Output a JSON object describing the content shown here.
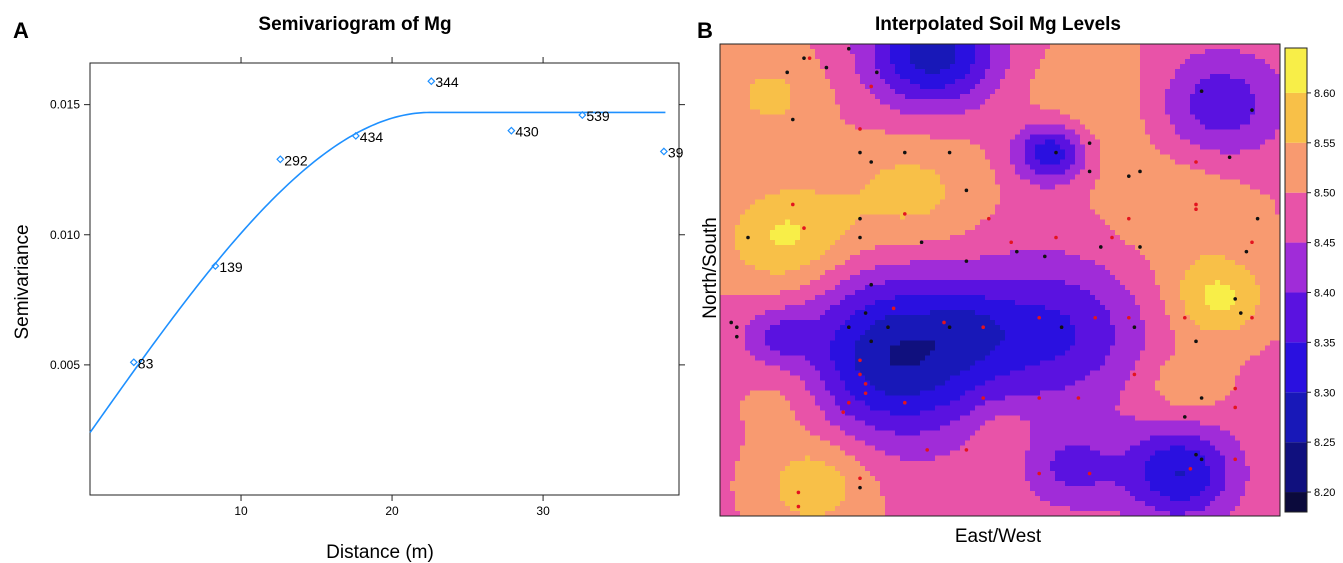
{
  "chart_data": [
    {
      "panel": "A",
      "type": "scatter",
      "title": "Semivariogram of Mg",
      "xlabel": "Distance (m)",
      "ylabel": "Semivariance",
      "xlim": [
        0,
        39
      ],
      "ylim": [
        0,
        0.0166
      ],
      "xticks": [
        10,
        20,
        30
      ],
      "xtick_labels": [
        "10",
        "20",
        "30"
      ],
      "yticks": [
        0.005,
        0.01,
        0.015
      ],
      "ytick_labels": [
        "0.005",
        "0.010",
        "0.015"
      ],
      "points": [
        {
          "x": 2.9,
          "y": 0.0051,
          "label": "83"
        },
        {
          "x": 8.3,
          "y": 0.0088,
          "label": "139"
        },
        {
          "x": 12.6,
          "y": 0.0129,
          "label": "292"
        },
        {
          "x": 17.6,
          "y": 0.0138,
          "label": "434"
        },
        {
          "x": 22.6,
          "y": 0.0159,
          "label": "344"
        },
        {
          "x": 27.9,
          "y": 0.014,
          "label": "430"
        },
        {
          "x": 32.6,
          "y": 0.0146,
          "label": "539"
        },
        {
          "x": 38.0,
          "y": 0.0132,
          "label": "39"
        }
      ],
      "model": {
        "type": "spherical",
        "nugget": 0.0024,
        "sill": 0.0147,
        "range": 22.5,
        "color": "#1e90ff"
      },
      "point_color": "#1e90ff"
    },
    {
      "panel": "B",
      "type": "heatmap",
      "title": "Interpolated Soil Mg Levels",
      "xlabel": "East/West",
      "ylabel": "North/South",
      "colorbar": {
        "min": 8.18,
        "max": 8.645,
        "ticks": [
          "8.20",
          "8.25",
          "8.30",
          "8.35",
          "8.40",
          "8.45",
          "8.50",
          "8.55",
          "8.60"
        ],
        "levels": [
          {
            "lo": 8.18,
            "hi": 8.2,
            "color": "#0b0a3c"
          },
          {
            "lo": 8.2,
            "hi": 8.25,
            "color": "#10107e"
          },
          {
            "lo": 8.25,
            "hi": 8.3,
            "color": "#1818b8"
          },
          {
            "lo": 8.3,
            "hi": 8.35,
            "color": "#2a10e0"
          },
          {
            "lo": 8.35,
            "hi": 8.4,
            "color": "#5a12e0"
          },
          {
            "lo": 8.4,
            "hi": 8.45,
            "color": "#a02cd8"
          },
          {
            "lo": 8.45,
            "hi": 8.5,
            "color": "#e853a8"
          },
          {
            "lo": 8.5,
            "hi": 8.55,
            "color": "#f89a70"
          },
          {
            "lo": 8.55,
            "hi": 8.6,
            "color": "#f8c048"
          },
          {
            "lo": 8.6,
            "hi": 8.645,
            "color": "#f8ee48"
          }
        ]
      },
      "field": {
        "base": 8.49,
        "features": [
          {
            "x": 0.38,
            "y": 0.98,
            "a": -0.22,
            "r": 0.08
          },
          {
            "x": 0.89,
            "y": 0.87,
            "a": -0.13,
            "r": 0.08
          },
          {
            "x": 0.59,
            "y": 0.77,
            "a": -0.19,
            "r": 0.045
          },
          {
            "x": 0.12,
            "y": 0.59,
            "a": 0.12,
            "r": 0.08
          },
          {
            "x": 0.34,
            "y": 0.68,
            "a": 0.08,
            "r": 0.09
          },
          {
            "x": 0.09,
            "y": 0.89,
            "a": 0.07,
            "r": 0.07
          },
          {
            "x": 0.32,
            "y": 0.34,
            "a": -0.24,
            "r": 0.12
          },
          {
            "x": 0.6,
            "y": 0.39,
            "a": -0.14,
            "r": 0.11
          },
          {
            "x": 0.82,
            "y": 0.09,
            "a": -0.19,
            "r": 0.07
          },
          {
            "x": 0.63,
            "y": 0.1,
            "a": -0.1,
            "r": 0.06
          },
          {
            "x": 0.89,
            "y": 0.46,
            "a": 0.12,
            "r": 0.06
          },
          {
            "x": 0.82,
            "y": 0.65,
            "a": 0.05,
            "r": 0.1
          },
          {
            "x": 0.17,
            "y": 0.07,
            "a": 0.1,
            "r": 0.07
          },
          {
            "x": 0.67,
            "y": 0.88,
            "a": 0.05,
            "r": 0.1
          },
          {
            "x": 0.1,
            "y": 0.38,
            "a": -0.08,
            "r": 0.04
          },
          {
            "x": 0.45,
            "y": 0.4,
            "a": -0.05,
            "r": 0.05
          },
          {
            "x": 0.12,
            "y": 0.25,
            "a": 0.05,
            "r": 0.06
          },
          {
            "x": 0.83,
            "y": 0.28,
            "a": 0.06,
            "r": 0.05
          },
          {
            "x": 0.5,
            "y": 0.18,
            "a": 0.04,
            "r": 0.04
          }
        ]
      },
      "sample_points": {
        "black": [
          [
            0.15,
            0.97
          ],
          [
            0.12,
            0.94
          ],
          [
            0.28,
            0.94
          ],
          [
            0.13,
            0.84
          ],
          [
            0.25,
            0.77
          ],
          [
            0.27,
            0.75
          ],
          [
            0.33,
            0.77
          ],
          [
            0.41,
            0.77
          ],
          [
            0.44,
            0.69
          ],
          [
            0.6,
            0.77
          ],
          [
            0.66,
            0.73
          ],
          [
            0.66,
            0.79
          ],
          [
            0.73,
            0.72
          ],
          [
            0.75,
            0.73
          ],
          [
            0.91,
            0.76
          ],
          [
            0.86,
            0.9
          ],
          [
            0.95,
            0.86
          ],
          [
            0.96,
            0.63
          ],
          [
            0.25,
            0.63
          ],
          [
            0.36,
            0.58
          ],
          [
            0.25,
            0.59
          ],
          [
            0.05,
            0.59
          ],
          [
            0.27,
            0.49
          ],
          [
            0.44,
            0.54
          ],
          [
            0.53,
            0.56
          ],
          [
            0.58,
            0.55
          ],
          [
            0.68,
            0.57
          ],
          [
            0.75,
            0.57
          ],
          [
            0.94,
            0.56
          ],
          [
            0.92,
            0.46
          ],
          [
            0.93,
            0.43
          ],
          [
            0.26,
            0.43
          ],
          [
            0.3,
            0.4
          ],
          [
            0.23,
            0.4
          ],
          [
            0.41,
            0.4
          ],
          [
            0.02,
            0.41
          ],
          [
            0.03,
            0.4
          ],
          [
            0.03,
            0.38
          ],
          [
            0.27,
            0.37
          ],
          [
            0.61,
            0.4
          ],
          [
            0.74,
            0.4
          ],
          [
            0.85,
            0.37
          ],
          [
            0.86,
            0.25
          ],
          [
            0.83,
            0.21
          ],
          [
            0.85,
            0.13
          ],
          [
            0.86,
            0.12
          ],
          [
            0.25,
            0.06
          ],
          [
            0.23,
            0.99
          ],
          [
            0.19,
            0.95
          ]
        ],
        "red": [
          [
            0.27,
            0.91
          ],
          [
            0.16,
            0.97
          ],
          [
            0.25,
            0.82
          ],
          [
            0.13,
            0.66
          ],
          [
            0.15,
            0.61
          ],
          [
            0.33,
            0.64
          ],
          [
            0.48,
            0.63
          ],
          [
            0.52,
            0.58
          ],
          [
            0.6,
            0.59
          ],
          [
            0.7,
            0.59
          ],
          [
            0.73,
            0.63
          ],
          [
            0.85,
            0.66
          ],
          [
            0.85,
            0.75
          ],
          [
            0.95,
            0.58
          ],
          [
            0.95,
            0.42
          ],
          [
            0.31,
            0.44
          ],
          [
            0.4,
            0.41
          ],
          [
            0.47,
            0.4
          ],
          [
            0.57,
            0.42
          ],
          [
            0.67,
            0.42
          ],
          [
            0.73,
            0.42
          ],
          [
            0.83,
            0.42
          ],
          [
            0.25,
            0.33
          ],
          [
            0.25,
            0.3
          ],
          [
            0.26,
            0.28
          ],
          [
            0.26,
            0.26
          ],
          [
            0.23,
            0.24
          ],
          [
            0.33,
            0.24
          ],
          [
            0.22,
            0.22
          ],
          [
            0.47,
            0.25
          ],
          [
            0.57,
            0.25
          ],
          [
            0.64,
            0.25
          ],
          [
            0.74,
            0.3
          ],
          [
            0.92,
            0.27
          ],
          [
            0.92,
            0.23
          ],
          [
            0.37,
            0.14
          ],
          [
            0.44,
            0.14
          ],
          [
            0.57,
            0.09
          ],
          [
            0.66,
            0.09
          ],
          [
            0.84,
            0.1
          ],
          [
            0.92,
            0.12
          ],
          [
            0.14,
            0.05
          ],
          [
            0.14,
            0.02
          ],
          [
            0.25,
            0.08
          ],
          [
            0.85,
            0.65
          ]
        ]
      },
      "point_colors": {
        "black": "#111111",
        "red": "#e3141f"
      }
    }
  ],
  "panels": {
    "a": {
      "letter": "A"
    },
    "b": {
      "letter": "B"
    }
  }
}
